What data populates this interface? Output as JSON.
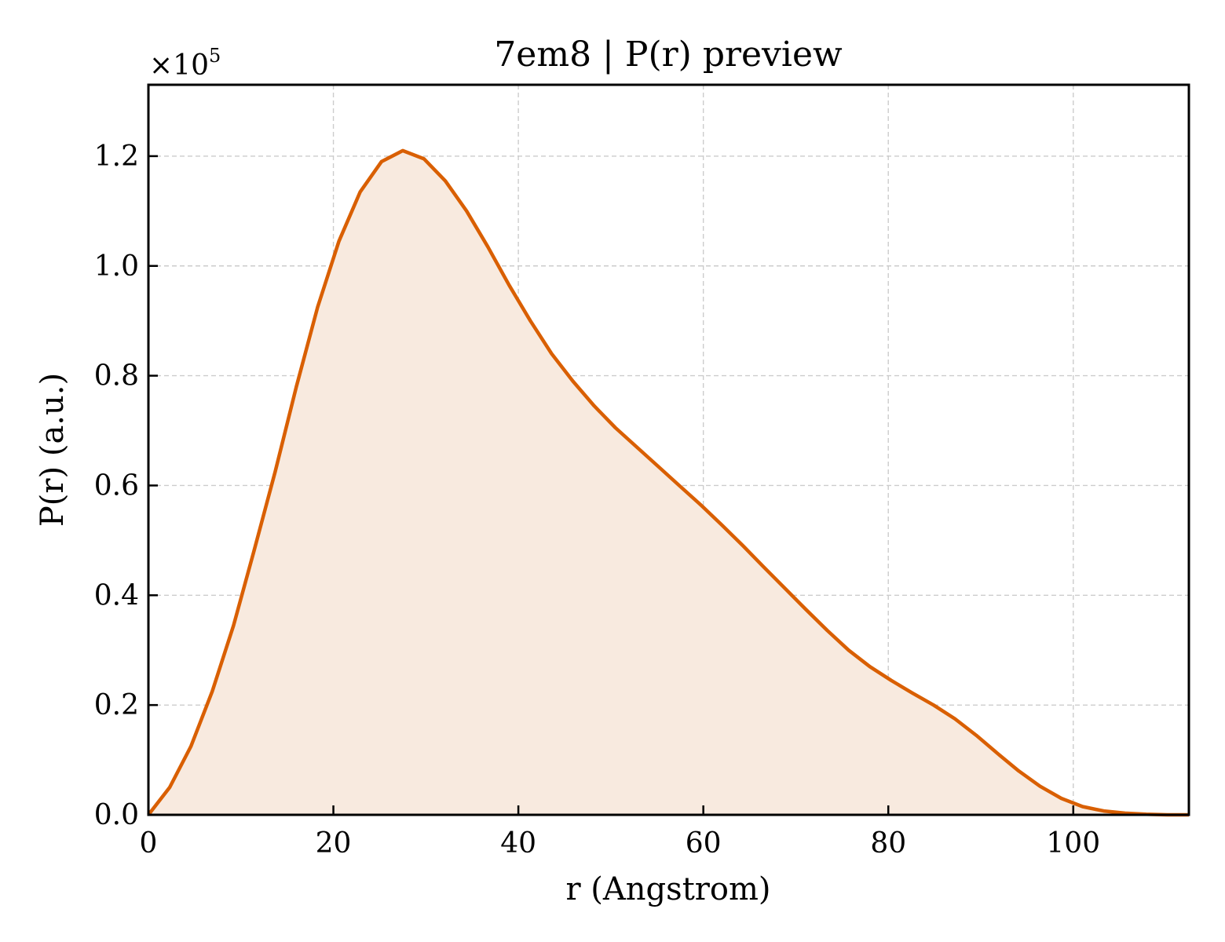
{
  "chart_data": {
    "type": "area",
    "title": "7em8 | P(r) preview",
    "xlabel": "r (Angstrom)",
    "ylabel": "P(r) (a.u.)",
    "y_multiplier_label": "×10",
    "y_multiplier_exponent": "5",
    "xlim": [
      0,
      112.5
    ],
    "ylim": [
      0,
      1.33
    ],
    "x_ticks": [
      0,
      20,
      40,
      60,
      80,
      100
    ],
    "x_tick_labels": [
      "0",
      "20",
      "40",
      "60",
      "80",
      "100"
    ],
    "y_ticks": [
      0,
      0.2,
      0.4,
      0.6,
      0.8,
      1.0,
      1.2
    ],
    "y_tick_labels": [
      "0.0",
      "0.2",
      "0.4",
      "0.6",
      "0.8",
      "1.0",
      "1.2"
    ],
    "grid": true,
    "line_color": "#d95f02",
    "fill_color": "#f8eadf",
    "series": [
      {
        "x": [
          0,
          2.3,
          4.6,
          6.9,
          9.2,
          11.4,
          13.7,
          16.0,
          18.3,
          20.6,
          22.9,
          25.2,
          27.5,
          29.8,
          32.1,
          34.4,
          36.7,
          39.0,
          41.3,
          43.6,
          45.9,
          48.2,
          50.5,
          52.8,
          55.1,
          57.4,
          59.7,
          62.0,
          64.3,
          66.5,
          68.8,
          71.1,
          73.4,
          75.7,
          78.0,
          80.3,
          82.6,
          84.9,
          87.2,
          89.5,
          91.8,
          94.1,
          96.4,
          98.7,
          101.0,
          103.3,
          105.6,
          107.9,
          110.2,
          112.5
        ],
        "values": [
          0.0,
          0.05,
          0.125,
          0.225,
          0.345,
          0.48,
          0.625,
          0.78,
          0.925,
          1.045,
          1.135,
          1.19,
          1.21,
          1.195,
          1.155,
          1.1,
          1.035,
          0.965,
          0.9,
          0.84,
          0.79,
          0.745,
          0.705,
          0.67,
          0.635,
          0.6,
          0.565,
          0.528,
          0.49,
          0.452,
          0.413,
          0.374,
          0.336,
          0.3,
          0.27,
          0.245,
          0.222,
          0.2,
          0.175,
          0.145,
          0.112,
          0.08,
          0.052,
          0.03,
          0.015,
          0.007,
          0.003,
          0.001,
          0.0,
          0.0
        ]
      }
    ]
  }
}
